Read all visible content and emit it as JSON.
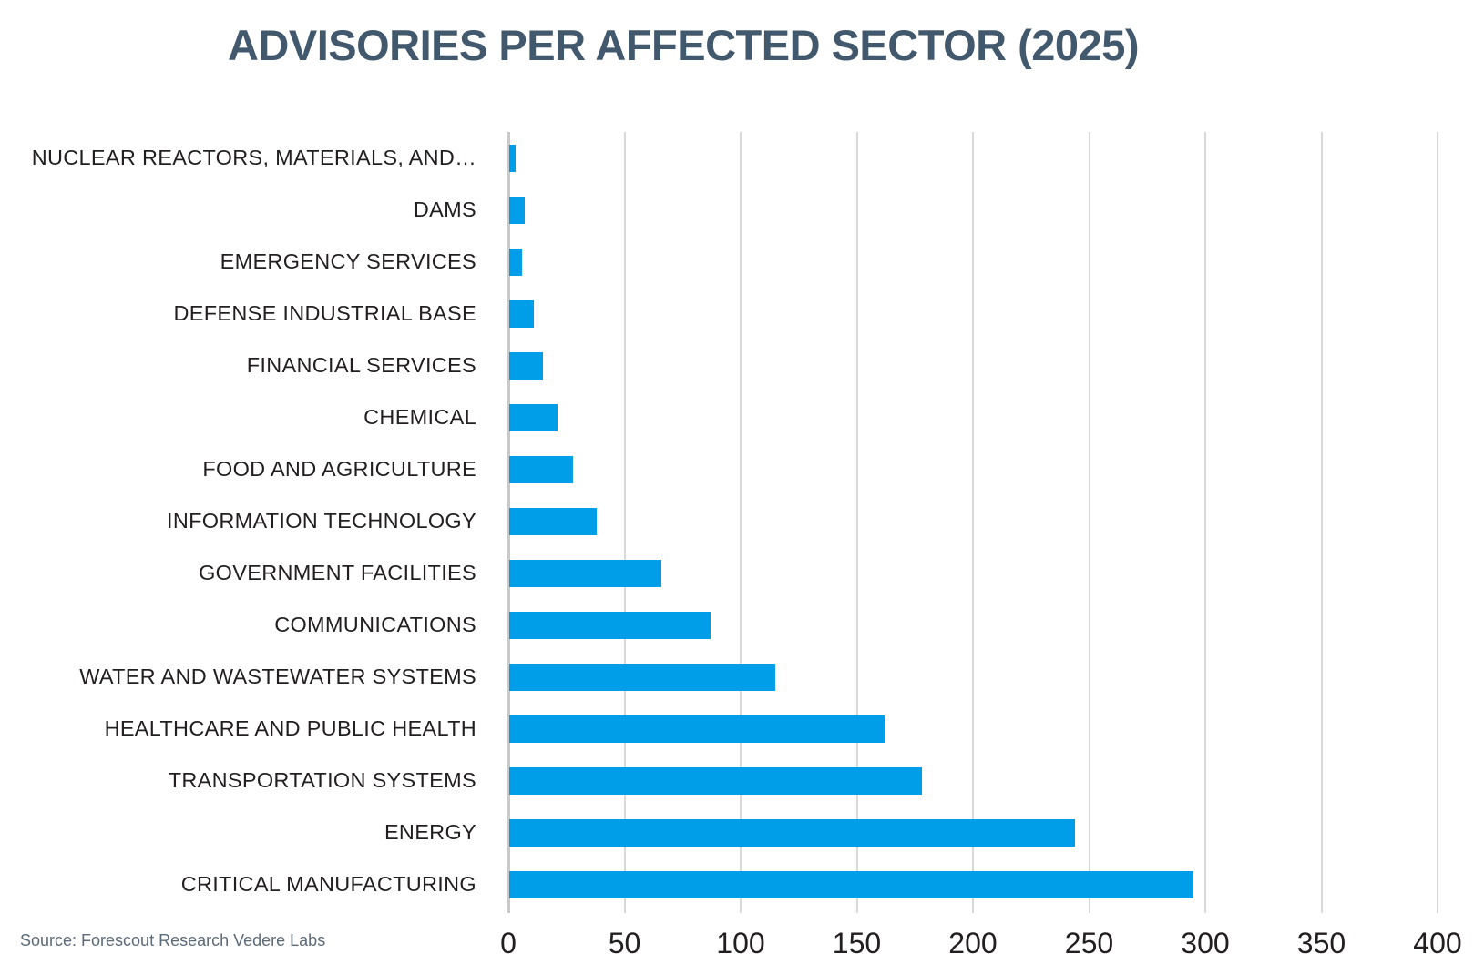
{
  "chart_data": {
    "type": "bar",
    "orientation": "horizontal",
    "title": "ADVISORIES PER AFFECTED SECTOR (2025)",
    "categories": [
      "NUCLEAR REACTORS, MATERIALS, AND…",
      "DAMS",
      "EMERGENCY SERVICES",
      "DEFENSE INDUSTRIAL BASE",
      "FINANCIAL SERVICES",
      "CHEMICAL",
      "FOOD AND AGRICULTURE",
      "INFORMATION TECHNOLOGY",
      "GOVERNMENT FACILITIES",
      "COMMUNICATIONS",
      "WATER AND WASTEWATER SYSTEMS",
      "HEALTHCARE AND PUBLIC HEALTH",
      "TRANSPORTATION SYSTEMS",
      "ENERGY",
      "CRITICAL MANUFACTURING"
    ],
    "values": [
      3,
      7,
      6,
      11,
      15,
      21,
      28,
      38,
      66,
      87,
      115,
      162,
      178,
      244,
      295
    ],
    "xlabel": "",
    "ylabel": "",
    "xlim": [
      0,
      400
    ],
    "xticks": [
      0,
      50,
      100,
      150,
      200,
      250,
      300,
      350,
      400
    ],
    "grid": "vertical",
    "legend": "none"
  },
  "source": "Source: Forescout Research Vedere Labs",
  "colors": {
    "bar": "#009ee8",
    "title": "#42586d",
    "category_label": "#231f20",
    "tick_label": "#231f20",
    "gridline": "#d9d9d9",
    "zero_line": "#c9c9c9",
    "source_text": "#5c6b7a",
    "background": "#ffffff"
  }
}
